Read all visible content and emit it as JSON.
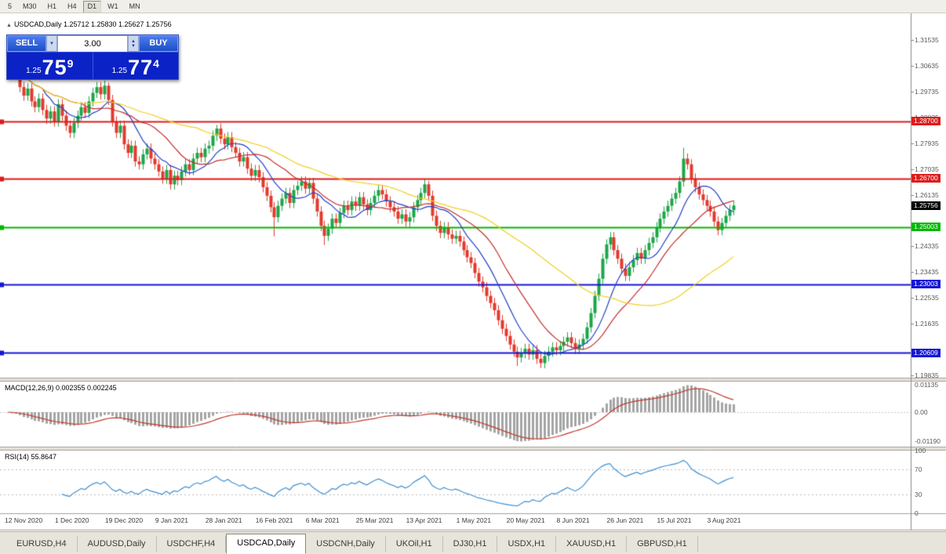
{
  "toolbar": {
    "timeframes": [
      {
        "label": "5",
        "active": false
      },
      {
        "label": "M30",
        "active": false
      },
      {
        "label": "H1",
        "active": false
      },
      {
        "label": "H4",
        "active": false
      },
      {
        "label": "D1",
        "active": true
      },
      {
        "label": "W1",
        "active": false
      },
      {
        "label": "MN",
        "active": false
      }
    ]
  },
  "chart": {
    "title": "USDCAD,Daily 1.25712 1.25830 1.25627 1.25756"
  },
  "trade": {
    "sell_label": "SELL",
    "buy_label": "BUY",
    "volume": "3.00",
    "sell_price": {
      "base": "1.25",
      "big": "75",
      "pip": "9"
    },
    "buy_price": {
      "base": "1.25",
      "big": "77",
      "pip": "4"
    }
  },
  "tabs": [
    {
      "label": "EURUSD,H4",
      "active": false
    },
    {
      "label": "AUDUSD,Daily",
      "active": false
    },
    {
      "label": "USDCHF,H4",
      "active": false
    },
    {
      "label": "USDCAD,Daily",
      "active": true
    },
    {
      "label": "USDCNH,Daily",
      "active": false
    },
    {
      "label": "UKOil,H1",
      "active": false
    },
    {
      "label": "DJ30,H1",
      "active": false
    },
    {
      "label": "USDX,H1",
      "active": false
    },
    {
      "label": "XAUUSD,H1",
      "active": false
    },
    {
      "label": "GBPUSD,H1",
      "active": false
    }
  ],
  "chart_data": [
    {
      "type": "candlestick",
      "title": "USDCAD,Daily",
      "ohlc_display": {
        "open": "1.25712",
        "high": "1.25830",
        "low": "1.25627",
        "close": "1.25756"
      },
      "x_labels": [
        "12 Nov 2020",
        "1 Dec 2020",
        "19 Dec 2020",
        "9 Jan 2021",
        "28 Jan 2021",
        "16 Feb 2021",
        "6 Mar 2021",
        "25 Mar 2021",
        "13 Apr 2021",
        "1 May 2021",
        "20 May 2021",
        "8 Jun 2021",
        "26 Jun 2021",
        "15 Jul 2021",
        "3 Aug 2021"
      ],
      "candles_per_label": 13,
      "first_open": 1.312,
      "wick_margin": 0.0018,
      "closes": [
        1.309,
        1.304,
        1.3055,
        1.299,
        1.296,
        1.2985,
        1.294,
        1.292,
        1.295,
        1.291,
        1.288,
        1.2905,
        1.287,
        1.293,
        1.289,
        1.2855,
        1.283,
        1.2865,
        1.289,
        1.292,
        1.29,
        1.294,
        1.297,
        1.299,
        1.2965,
        1.2995,
        1.2945,
        1.287,
        1.283,
        1.2855,
        1.279,
        1.276,
        1.2785,
        1.273,
        1.272,
        1.2755,
        1.2775,
        1.274,
        1.272,
        1.2695,
        1.267,
        1.27,
        1.265,
        1.268,
        1.2665,
        1.2695,
        1.272,
        1.27,
        1.274,
        1.276,
        1.2745,
        1.2775,
        1.2785,
        1.282,
        1.2845,
        1.281,
        1.279,
        1.2815,
        1.278,
        1.276,
        1.273,
        1.2745,
        1.2705,
        1.268,
        1.27,
        1.2675,
        1.264,
        1.261,
        1.257,
        1.2535,
        1.2575,
        1.26,
        1.262,
        1.2585,
        1.263,
        1.2645,
        1.266,
        1.2635,
        1.2655,
        1.26,
        1.2555,
        1.2505,
        1.247,
        1.2495,
        1.253,
        1.2515,
        1.255,
        1.2575,
        1.256,
        1.259,
        1.2575,
        1.2605,
        1.258,
        1.256,
        1.2585,
        1.261,
        1.263,
        1.2615,
        1.259,
        1.257,
        1.2555,
        1.253,
        1.2545,
        1.252,
        1.2535,
        1.257,
        1.2595,
        1.262,
        1.265,
        1.261,
        1.254,
        1.2505,
        1.248,
        1.25,
        1.2475,
        1.246,
        1.247,
        1.245,
        1.242,
        1.2395,
        1.2375,
        1.234,
        1.231,
        1.229,
        1.226,
        1.2235,
        1.221,
        1.2175,
        1.2145,
        1.212,
        1.209,
        1.2065,
        1.2045,
        1.206,
        1.2075,
        1.2055,
        1.207,
        1.204,
        1.2025,
        1.205,
        1.2065,
        1.208,
        1.207,
        1.2085,
        1.21,
        1.2115,
        1.2095,
        1.2075,
        1.209,
        1.211,
        1.215,
        1.22,
        1.226,
        1.232,
        1.239,
        1.244,
        1.2465,
        1.242,
        1.239,
        1.2355,
        1.233,
        1.236,
        1.2385,
        1.241,
        1.239,
        1.242,
        1.2445,
        1.2465,
        1.25,
        1.253,
        1.2555,
        1.2575,
        1.26,
        1.262,
        1.266,
        1.274,
        1.272,
        1.267,
        1.264,
        1.2615,
        1.2595,
        1.2575,
        1.2555,
        1.252,
        1.249,
        1.2515,
        1.254,
        1.256,
        1.2576
      ],
      "wick_overrides": {
        "26": {
          "h": 1.3005
        },
        "54": {
          "h": 1.2858
        },
        "69": {
          "l": 1.2468
        },
        "82": {
          "l": 1.2438
        },
        "109": {
          "h": 1.2662
        },
        "132": {
          "l": 1.2015
        },
        "138": {
          "l": 1.2008
        },
        "175": {
          "h": 1.2778
        }
      },
      "y_axis": {
        "price_top": 1.3248,
        "price_bottom": 1.1974,
        "ticks": [
          "1.31535",
          "1.30635",
          "1.29735",
          "1.28835",
          "1.27935",
          "1.27035",
          "1.26135",
          "1.24335",
          "1.23435",
          "1.22535",
          "1.21635",
          "1.19835"
        ]
      },
      "levels": [
        {
          "price": 1.287,
          "label": "1.28700",
          "color": "#dd1c1c",
          "lw": 2
        },
        {
          "price": 1.267,
          "label": "1.26700",
          "color": "#dd1c1c",
          "lw": 2
        },
        {
          "price": 1.25003,
          "label": "1.25003",
          "color": "#00b700",
          "lw": 2
        },
        {
          "price": 1.23003,
          "label": "1.23003",
          "color": "#1616d6",
          "lw": 2
        },
        {
          "price": 1.20609,
          "label": "1.20609",
          "color": "#1616d6",
          "lw": 2
        }
      ],
      "current_price": {
        "label": "1.25756",
        "price": 1.25756,
        "bg": "#000000"
      },
      "moving_averages": [
        {
          "period": 10,
          "color": "#2340c8"
        },
        {
          "period": 20,
          "color": "#c62f2f"
        },
        {
          "period": 50,
          "color": "#f0d020"
        }
      ],
      "up_color": "#1ca648",
      "down_color": "#e23a2e"
    },
    {
      "type": "macd_histogram",
      "label": "MACD(12,26,9) 0.002355 0.002245",
      "params": [
        12,
        26,
        9
      ],
      "values_display": [
        "0.002355",
        "0.002245"
      ],
      "axis_ticks": [
        "0.01135",
        "0.00",
        "-0.01190"
      ],
      "hist_color": "#a5a5a5",
      "signal_color": "#c0392b"
    },
    {
      "type": "line",
      "label": "RSI(14) 55.8647",
      "period": 14,
      "current": "55.8647",
      "axis_ticks": [
        "100",
        "70",
        "30",
        "0"
      ],
      "levels": [
        70,
        30
      ],
      "line_color": "#3f8fd2"
    }
  ]
}
